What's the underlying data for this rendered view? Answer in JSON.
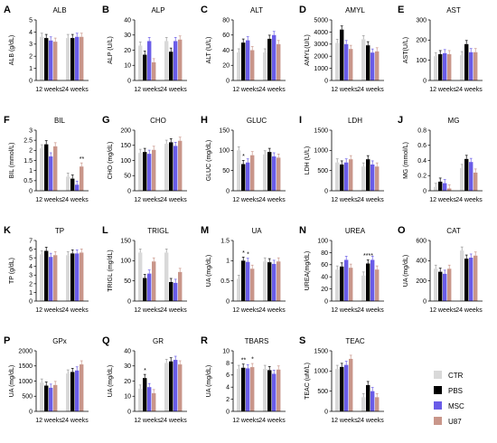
{
  "figure": {
    "groups": [
      "12 weeks",
      "24 weeks"
    ],
    "legend": [
      {
        "name": "CTR",
        "color": "#d9d9d9"
      },
      {
        "name": "PBS",
        "color": "#000000"
      },
      {
        "name": "MSC",
        "color": "#6a5ce8"
      },
      {
        "name": "U87",
        "color": "#c9968a"
      }
    ]
  },
  "chart_data": [
    {
      "letter": "A",
      "type": "bar",
      "title": "ALB",
      "ylabel": "ALB (g/dL)",
      "ylim": [
        0,
        5
      ],
      "yticks": [
        0,
        1,
        2,
        3,
        4,
        5
      ],
      "categories": [
        "12 weeks",
        "24 weeks"
      ],
      "series": [
        {
          "name": "CTR",
          "values": [
            3.6,
            3.5
          ]
        },
        {
          "name": "PBS",
          "values": [
            3.5,
            3.5
          ]
        },
        {
          "name": "MSC",
          "values": [
            3.3,
            3.6
          ]
        },
        {
          "name": "U87",
          "values": [
            3.2,
            3.6
          ]
        }
      ]
    },
    {
      "letter": "B",
      "type": "bar",
      "title": "ALP",
      "ylabel": "ALP (U/L)",
      "ylim": [
        0,
        40
      ],
      "yticks": [
        0,
        10,
        20,
        30,
        40
      ],
      "categories": [
        "12 weeks",
        "24 weeks"
      ],
      "series": [
        {
          "name": "CTR",
          "values": [
            23,
            26
          ]
        },
        {
          "name": "PBS",
          "values": [
            17,
            19
          ]
        },
        {
          "name": "MSC",
          "values": [
            26,
            26
          ]
        },
        {
          "name": "U87",
          "values": [
            12,
            27
          ]
        }
      ]
    },
    {
      "letter": "C",
      "type": "bar",
      "title": "ALT",
      "ylabel": "ALT (U/L)",
      "ylim": [
        0,
        80
      ],
      "yticks": [
        0,
        20,
        40,
        60,
        80
      ],
      "categories": [
        "12 weeks",
        "24 weeks"
      ],
      "series": [
        {
          "name": "CTR",
          "values": [
            37,
            37
          ]
        },
        {
          "name": "PBS",
          "values": [
            50,
            55
          ]
        },
        {
          "name": "MSC",
          "values": [
            53,
            60
          ]
        },
        {
          "name": "U87",
          "values": [
            40,
            48
          ]
        }
      ]
    },
    {
      "letter": "D",
      "type": "bar",
      "title": "AMYL",
      "ylabel": "AMYL(U/L)",
      "ylim": [
        0,
        5000
      ],
      "yticks": [
        0,
        1000,
        2000,
        3000,
        4000,
        5000
      ],
      "categories": [
        "12 weeks",
        "24 weeks"
      ],
      "series": [
        {
          "name": "CTR",
          "values": [
            3100,
            3400
          ]
        },
        {
          "name": "PBS",
          "values": [
            4200,
            2900
          ]
        },
        {
          "name": "MSC",
          "values": [
            3000,
            2300
          ]
        },
        {
          "name": "U87",
          "values": [
            2600,
            2400
          ]
        }
      ]
    },
    {
      "letter": "E",
      "type": "bar",
      "title": "AST",
      "ylabel": "AST(U/L)",
      "ylim": [
        0,
        300
      ],
      "yticks": [
        0,
        100,
        200,
        300
      ],
      "categories": [
        "12 weeks",
        "24 weeks"
      ],
      "series": [
        {
          "name": "CTR",
          "values": [
            120,
            125
          ]
        },
        {
          "name": "PBS",
          "values": [
            130,
            180
          ]
        },
        {
          "name": "MSC",
          "values": [
            135,
            140
          ]
        },
        {
          "name": "U87",
          "values": [
            130,
            140
          ]
        }
      ]
    },
    {
      "letter": "F",
      "type": "bar",
      "title": "BIL",
      "ylabel": "BIL (mmol/L)",
      "ylim": [
        0,
        3
      ],
      "yticks": [
        0.0,
        0.5,
        1.0,
        1.5,
        2.0,
        2.5,
        3.0
      ],
      "categories": [
        "12 weeks",
        "24 weeks"
      ],
      "series": [
        {
          "name": "CTR",
          "values": [
            2.1,
            0.7
          ]
        },
        {
          "name": "PBS",
          "values": [
            2.3,
            0.6
          ]
        },
        {
          "name": "MSC",
          "values": [
            1.7,
            0.3
          ]
        },
        {
          "name": "U87",
          "values": [
            2.2,
            1.2
          ]
        }
      ],
      "annotations": [
        "**"
      ]
    },
    {
      "letter": "G",
      "type": "bar",
      "title": "CHO",
      "ylabel": "CHO (mg/dL)",
      "ylim": [
        0,
        200
      ],
      "yticks": [
        0,
        50,
        100,
        150,
        200
      ],
      "categories": [
        "12 weeks",
        "24 weeks"
      ],
      "series": [
        {
          "name": "CTR",
          "values": [
            125,
            155
          ]
        },
        {
          "name": "PBS",
          "values": [
            128,
            160
          ]
        },
        {
          "name": "MSC",
          "values": [
            122,
            148
          ]
        },
        {
          "name": "U87",
          "values": [
            135,
            165
          ]
        }
      ]
    },
    {
      "letter": "H",
      "type": "bar",
      "title": "GLUC",
      "ylabel": "GLUC (mg/dL)",
      "ylim": [
        0,
        150
      ],
      "yticks": [
        0,
        50,
        100,
        150
      ],
      "categories": [
        "12 weeks",
        "24 weeks"
      ],
      "series": [
        {
          "name": "CTR",
          "values": [
            100,
            90
          ]
        },
        {
          "name": "PBS",
          "values": [
            66,
            96
          ]
        },
        {
          "name": "MSC",
          "values": [
            70,
            85
          ]
        },
        {
          "name": "U87",
          "values": [
            88,
            82
          ]
        }
      ],
      "annotations": [
        "*"
      ]
    },
    {
      "letter": "I",
      "type": "bar",
      "title": "LDH",
      "ylabel": "LDH (U/L)",
      "ylim": [
        0,
        1500
      ],
      "yticks": [
        0,
        500,
        1000,
        1500
      ],
      "categories": [
        "12 weeks",
        "24 weeks"
      ],
      "series": [
        {
          "name": "CTR",
          "values": [
            700,
            600
          ]
        },
        {
          "name": "PBS",
          "values": [
            650,
            780
          ]
        },
        {
          "name": "MSC",
          "values": [
            700,
            650
          ]
        },
        {
          "name": "U87",
          "values": [
            780,
            600
          ]
        }
      ]
    },
    {
      "letter": "J",
      "type": "bar",
      "title": "MG",
      "ylabel": "MG (mmol/L)",
      "ylim": [
        0,
        0.8
      ],
      "yticks": [
        0.0,
        0.2,
        0.4,
        0.6,
        0.8
      ],
      "categories": [
        "12 weeks",
        "24 weeks"
      ],
      "series": [
        {
          "name": "CTR",
          "values": [
            0.05,
            0.3
          ]
        },
        {
          "name": "PBS",
          "values": [
            0.12,
            0.42
          ]
        },
        {
          "name": "MSC",
          "values": [
            0.1,
            0.38
          ]
        },
        {
          "name": "U87",
          "values": [
            0.03,
            0.24
          ]
        }
      ]
    },
    {
      "letter": "K",
      "type": "bar",
      "title": "TP",
      "ylabel": "TP (g/dL)",
      "ylim": [
        0,
        7
      ],
      "yticks": [
        0,
        1,
        2,
        3,
        4,
        5,
        6,
        7
      ],
      "categories": [
        "12 weeks",
        "24 weeks"
      ],
      "series": [
        {
          "name": "CTR",
          "values": [
            5.4,
            5.3
          ]
        },
        {
          "name": "PBS",
          "values": [
            5.8,
            5.5
          ]
        },
        {
          "name": "MSC",
          "values": [
            5.1,
            5.5
          ]
        },
        {
          "name": "U87",
          "values": [
            5.3,
            5.6
          ]
        }
      ]
    },
    {
      "letter": "L",
      "type": "bar",
      "title": "TRIGL",
      "ylabel": "TRIGL (mg/dL)",
      "ylim": [
        0,
        150
      ],
      "yticks": [
        0,
        50,
        100,
        150
      ],
      "categories": [
        "12 weeks",
        "24 weeks"
      ],
      "series": [
        {
          "name": "CTR",
          "values": [
            120,
            120
          ]
        },
        {
          "name": "PBS",
          "values": [
            57,
            47
          ]
        },
        {
          "name": "MSC",
          "values": [
            68,
            45
          ]
        },
        {
          "name": "U87",
          "values": [
            98,
            72
          ]
        }
      ]
    },
    {
      "letter": "M",
      "type": "bar",
      "title": "UA",
      "ylabel": "UA (mg/dL)",
      "ylim": [
        0,
        1.5
      ],
      "yticks": [
        0.0,
        0.5,
        1.0,
        1.5
      ],
      "categories": [
        "12 weeks",
        "24 weeks"
      ],
      "series": [
        {
          "name": "CTR",
          "values": [
            0.55,
            0.98
          ]
        },
        {
          "name": "PBS",
          "values": [
            1.0,
            0.96
          ]
        },
        {
          "name": "MSC",
          "values": [
            0.97,
            0.92
          ]
        },
        {
          "name": "U87",
          "values": [
            0.8,
            0.98
          ]
        }
      ],
      "annotations": [
        "*",
        "*"
      ]
    },
    {
      "letter": "N",
      "type": "bar",
      "title": "UREA",
      "ylabel": "UREA(mg/dL)",
      "ylim": [
        0,
        100
      ],
      "yticks": [
        0,
        20,
        40,
        60,
        80,
        100
      ],
      "categories": [
        "12 weeks",
        "24 weeks"
      ],
      "series": [
        {
          "name": "CTR",
          "values": [
            52,
            42
          ]
        },
        {
          "name": "PBS",
          "values": [
            57,
            62
          ]
        },
        {
          "name": "MSC",
          "values": [
            68,
            68
          ]
        },
        {
          "name": "U87",
          "values": [
            55,
            52
          ]
        }
      ],
      "annotations": [
        "****"
      ]
    },
    {
      "letter": "O",
      "type": "bar",
      "title": "CAT",
      "ylabel": "UA (mg/dL)",
      "ylim": [
        0,
        600
      ],
      "yticks": [
        0,
        200,
        400,
        600
      ],
      "categories": [
        "12 weeks",
        "24 weeks"
      ],
      "series": [
        {
          "name": "CTR",
          "values": [
            320,
            500
          ]
        },
        {
          "name": "PBS",
          "values": [
            290,
            420
          ]
        },
        {
          "name": "MSC",
          "values": [
            270,
            430
          ]
        },
        {
          "name": "U87",
          "values": [
            320,
            450
          ]
        }
      ]
    },
    {
      "letter": "P",
      "type": "bar",
      "title": "GPx",
      "ylabel": "UA (mg/dL)",
      "ylim": [
        0,
        2000
      ],
      "yticks": [
        0,
        500,
        1000,
        1500,
        2000
      ],
      "categories": [
        "12 weeks",
        "24 weeks"
      ],
      "series": [
        {
          "name": "CTR",
          "values": [
            950,
            1250
          ]
        },
        {
          "name": "PBS",
          "values": [
            850,
            1300
          ]
        },
        {
          "name": "MSC",
          "values": [
            780,
            1350
          ]
        },
        {
          "name": "U87",
          "values": [
            870,
            1550
          ]
        }
      ]
    },
    {
      "letter": "Q",
      "type": "bar",
      "title": "GR",
      "ylabel": "UA (mg/dL)",
      "ylim": [
        0,
        40
      ],
      "yticks": [
        0,
        10,
        20,
        30,
        40
      ],
      "categories": [
        "12 weeks",
        "24 weeks"
      ],
      "series": [
        {
          "name": "CTR",
          "values": [
            15,
            32
          ]
        },
        {
          "name": "PBS",
          "values": [
            22,
            33
          ]
        },
        {
          "name": "MSC",
          "values": [
            16,
            34
          ]
        },
        {
          "name": "U87",
          "values": [
            12,
            31
          ]
        }
      ],
      "annotations": [
        "*"
      ]
    },
    {
      "letter": "R",
      "type": "bar",
      "title": "TBARS",
      "ylabel": "UA (mg/dL)",
      "ylim": [
        0,
        10
      ],
      "yticks": [
        0,
        2,
        4,
        6,
        8,
        10
      ],
      "categories": [
        "12 weeks",
        "24 weeks"
      ],
      "series": [
        {
          "name": "CTR",
          "values": [
            7.0,
            7.0
          ]
        },
        {
          "name": "PBS",
          "values": [
            7.2,
            6.8
          ]
        },
        {
          "name": "MSC",
          "values": [
            7.1,
            6.2
          ]
        },
        {
          "name": "U87",
          "values": [
            7.3,
            6.9
          ]
        }
      ],
      "annotations": [
        "**",
        "*"
      ]
    },
    {
      "letter": "S",
      "type": "bar",
      "title": "TEAC",
      "ylabel": "TEAC (uM/L)",
      "ylim": [
        0,
        1500
      ],
      "yticks": [
        0,
        500,
        1000,
        1500
      ],
      "categories": [
        "12 weeks",
        "24 weeks"
      ],
      "series": [
        {
          "name": "CTR",
          "values": [
            1050,
            350
          ]
        },
        {
          "name": "PBS",
          "values": [
            1100,
            650
          ]
        },
        {
          "name": "MSC",
          "values": [
            1150,
            500
          ]
        },
        {
          "name": "U87",
          "values": [
            1300,
            350
          ]
        }
      ]
    }
  ]
}
